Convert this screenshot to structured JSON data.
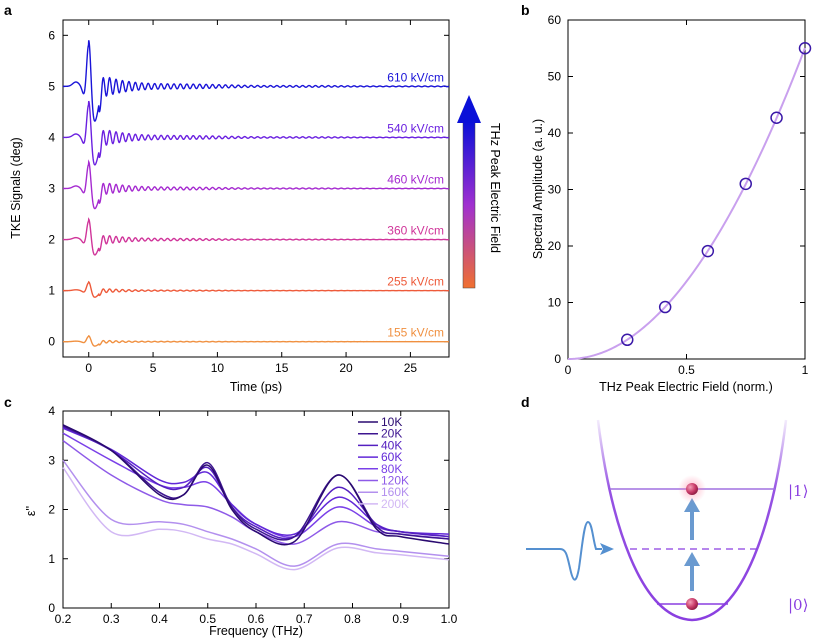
{
  "panel_labels": {
    "a": "a",
    "b": "b",
    "c": "c",
    "d": "d"
  },
  "colorbar": {
    "label": "THz Peak Electric Field",
    "top_color": "#0a10d8",
    "mid_color": "#a030d0",
    "bottom_color": "#f07030"
  },
  "chart_data": [
    {
      "id": "a",
      "type": "line",
      "title": "",
      "xlabel": "Time (ps)",
      "ylabel": "TKE Signals (deg)",
      "xlim": [
        -2,
        28
      ],
      "ylim": [
        -0.3,
        6.3
      ],
      "xticks": [
        0,
        5,
        10,
        15,
        20,
        25
      ],
      "yticks": [
        0,
        1,
        2,
        3,
        4,
        5,
        6
      ],
      "series": [
        {
          "name": "155 kV/cm",
          "offset": 0,
          "peak": 0.12,
          "color": "#f09040"
        },
        {
          "name": "255 kV/cm",
          "offset": 1,
          "peak": 0.18,
          "color": "#ee5a3a"
        },
        {
          "name": "360 kV/cm",
          "offset": 2,
          "peak": 0.42,
          "color": "#d0359a"
        },
        {
          "name": "460 kV/cm",
          "offset": 3,
          "peak": 0.55,
          "color": "#a52ad0"
        },
        {
          "name": "540 kV/cm",
          "offset": 4,
          "peak": 0.75,
          "color": "#6a20e0"
        },
        {
          "name": "610 kV/cm",
          "offset": 5,
          "peak": 0.95,
          "color": "#1a14d8"
        }
      ]
    },
    {
      "id": "b",
      "type": "scatter",
      "title": "",
      "xlabel": "THz Peak Electric Field (norm.)",
      "ylabel": "Spectral Amplitude (a. u.)",
      "xlim": [
        0,
        1
      ],
      "ylim": [
        0,
        60
      ],
      "xticks": [
        0,
        0.5,
        1
      ],
      "xtick_labels": [
        "0",
        "0.5",
        "1"
      ],
      "yticks": [
        0,
        10,
        20,
        30,
        40,
        50,
        60
      ],
      "points": {
        "x": [
          0.25,
          0.41,
          0.59,
          0.75,
          0.88,
          1.0
        ],
        "y": [
          3.4,
          9.2,
          19.1,
          31.0,
          42.7,
          55.0
        ]
      },
      "fit": {
        "form": "quadratic",
        "color": "#c9a0ee"
      },
      "marker_color": "#3a18a8"
    },
    {
      "id": "c",
      "type": "line",
      "title": "",
      "xlabel": "Frequency (THz)",
      "ylabel": "ε''",
      "xlim": [
        0.2,
        1.0
      ],
      "ylim": [
        0,
        4
      ],
      "xticks": [
        0.2,
        0.3,
        0.4,
        0.5,
        0.6,
        0.7,
        0.8,
        0.9,
        1.0
      ],
      "xtick_labels": [
        "0.2",
        "0.3",
        "0.4",
        "0.5",
        "0.6",
        "0.7",
        "0.8",
        "0.9",
        "1.0"
      ],
      "yticks": [
        0,
        1,
        2,
        3,
        4
      ],
      "legend_location": "top-right",
      "series": [
        {
          "name": "10K",
          "color": "#2a0a70",
          "x": [
            0.2,
            0.3,
            0.4,
            0.45,
            0.5,
            0.55,
            0.6,
            0.68,
            0.77,
            0.85,
            0.9,
            1.0
          ],
          "y": [
            3.72,
            3.2,
            2.3,
            2.3,
            2.9,
            2.0,
            1.55,
            1.35,
            2.7,
            1.6,
            1.45,
            1.3
          ]
        },
        {
          "name": "20K",
          "color": "#3d1590",
          "x": [
            0.2,
            0.3,
            0.4,
            0.45,
            0.5,
            0.55,
            0.6,
            0.68,
            0.77,
            0.85,
            0.9,
            1.0
          ],
          "y": [
            3.7,
            3.2,
            2.35,
            2.3,
            2.95,
            2.05,
            1.6,
            1.45,
            2.7,
            1.65,
            1.5,
            1.4
          ]
        },
        {
          "name": "40K",
          "color": "#5520c0",
          "x": [
            0.2,
            0.3,
            0.4,
            0.45,
            0.5,
            0.55,
            0.6,
            0.68,
            0.77,
            0.85,
            0.9,
            1.0
          ],
          "y": [
            3.68,
            3.2,
            2.5,
            2.45,
            2.85,
            2.05,
            1.65,
            1.45,
            2.45,
            1.7,
            1.55,
            1.45
          ]
        },
        {
          "name": "60K",
          "color": "#6228d8",
          "x": [
            0.2,
            0.3,
            0.4,
            0.45,
            0.5,
            0.55,
            0.6,
            0.68,
            0.77,
            0.85,
            0.9,
            1.0
          ],
          "y": [
            3.65,
            3.22,
            2.6,
            2.55,
            2.75,
            2.1,
            1.7,
            1.5,
            2.25,
            1.7,
            1.55,
            1.5
          ]
        },
        {
          "name": "80K",
          "color": "#7a40e8",
          "x": [
            0.2,
            0.3,
            0.4,
            0.45,
            0.5,
            0.55,
            0.6,
            0.68,
            0.77,
            0.85,
            0.9,
            1.0
          ],
          "y": [
            3.55,
            3.0,
            2.5,
            2.45,
            2.55,
            2.1,
            1.7,
            1.45,
            2.05,
            1.65,
            1.55,
            1.45
          ]
        },
        {
          "name": "120K",
          "color": "#8e5ae8",
          "x": [
            0.2,
            0.3,
            0.4,
            0.45,
            0.5,
            0.55,
            0.6,
            0.68,
            0.77,
            0.85,
            0.9,
            1.0
          ],
          "y": [
            3.4,
            2.7,
            2.2,
            2.1,
            2.05,
            1.85,
            1.55,
            1.3,
            1.75,
            1.55,
            1.5,
            1.4
          ]
        },
        {
          "name": "160K",
          "color": "#b390ee",
          "x": [
            0.2,
            0.3,
            0.4,
            0.45,
            0.5,
            0.55,
            0.6,
            0.68,
            0.77,
            0.85,
            0.9,
            1.0
          ],
          "y": [
            3.0,
            1.8,
            1.75,
            1.7,
            1.55,
            1.4,
            1.2,
            0.85,
            1.3,
            1.2,
            1.15,
            1.05
          ]
        },
        {
          "name": "200K",
          "color": "#d2b8f4",
          "x": [
            0.2,
            0.3,
            0.4,
            0.45,
            0.5,
            0.55,
            0.6,
            0.68,
            0.77,
            0.85,
            0.9,
            1.0
          ],
          "y": [
            2.85,
            1.55,
            1.6,
            1.55,
            1.4,
            1.3,
            1.1,
            0.78,
            1.22,
            1.12,
            1.08,
            0.98
          ]
        }
      ]
    }
  ],
  "diagram_d": {
    "ket_upper": "|1⟩",
    "ket_lower": "|0⟩",
    "well_color": "#8a3fe0",
    "pulse_color": "#5590d0"
  }
}
